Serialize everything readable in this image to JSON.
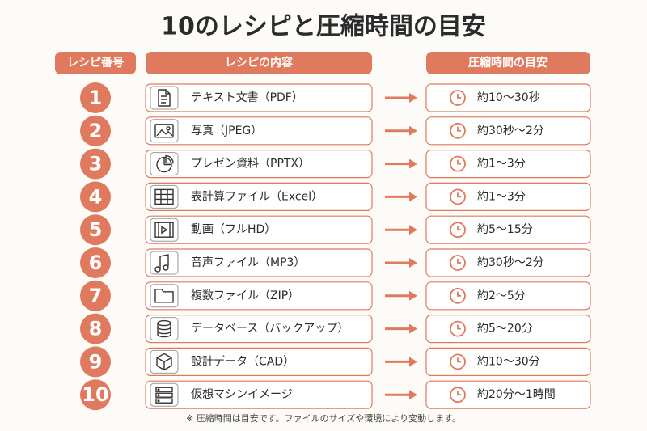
{
  "title": "10のレシピと圧縮時間の目安",
  "headers": [
    "レシピ番号",
    "レシピの内容",
    "圧縮時間の目安"
  ],
  "rows": [
    {
      "number": 1,
      "recipe": "テキスト文書（PDF）",
      "time": "約10～30秒"
    },
    {
      "number": 2,
      "recipe": "写真（JPEG）",
      "time": "約30秒～2分"
    },
    {
      "number": 3,
      "recipe": "プレゼン資料（PPTX）",
      "time": "約1～3分"
    },
    {
      "number": 4,
      "recipe": "表計算ファイル（Excel）",
      "time": "約1～3分"
    },
    {
      "number": 5,
      "recipe": "動画（フルHD）",
      "time": "約5～15分"
    },
    {
      "number": 6,
      "recipe": "音声ファイル（MP3）",
      "time": "約30秒～2分"
    },
    {
      "number": 7,
      "recipe": "複数ファイル（ZIP）",
      "time": "約2～5分"
    },
    {
      "number": 8,
      "recipe": "データベース（バックアップ）",
      "time": "約5～20分"
    },
    {
      "number": 9,
      "recipe": "設計データ（CAD）",
      "time": "約10～30分"
    },
    {
      "number": 10,
      "recipe": "仮想マシンイメージ",
      "time": "約20分～1時間"
    }
  ],
  "footnote": "※ 圧縮時間は目安です。ファイルのサイズや環境により変動します。"
}
